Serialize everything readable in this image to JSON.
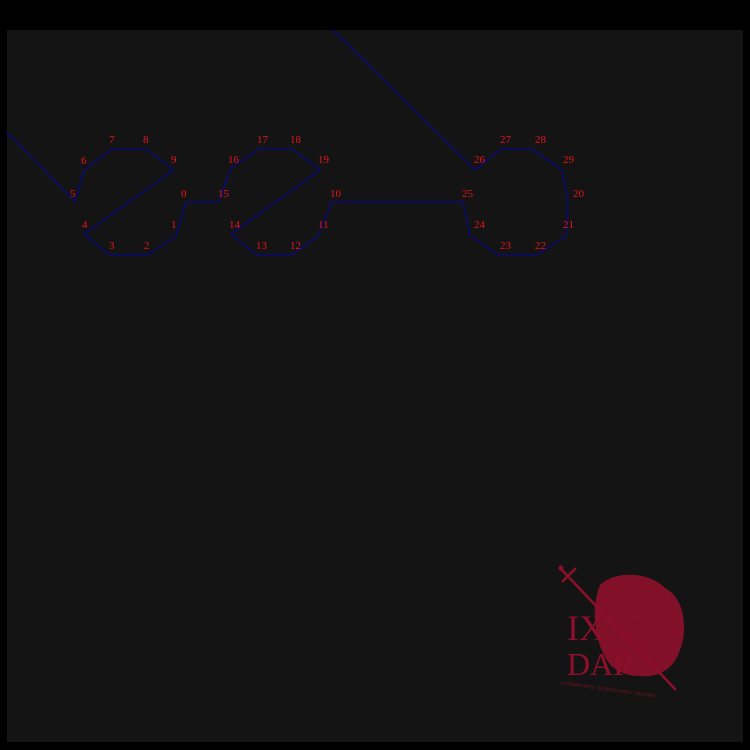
{
  "colors": {
    "frame": "#000000",
    "background": "#141414",
    "path": "#0a0a6e",
    "labels": "#e8141e",
    "logo": "#8e0f2b"
  },
  "path_nodes": [
    "0",
    "1",
    "2",
    "3",
    "4",
    "5",
    "6",
    "7",
    "8",
    "9",
    "10",
    "11",
    "12",
    "13",
    "14",
    "15",
    "16",
    "17",
    "18",
    "19",
    "20",
    "21",
    "22",
    "23",
    "24",
    "25",
    "26",
    "27",
    "28",
    "29"
  ],
  "logo": {
    "line1": "IX",
    "line2": "DAR",
    "tagline": "CONSERVAMUS · INVESTIGAMUS · DISCIMUS"
  }
}
